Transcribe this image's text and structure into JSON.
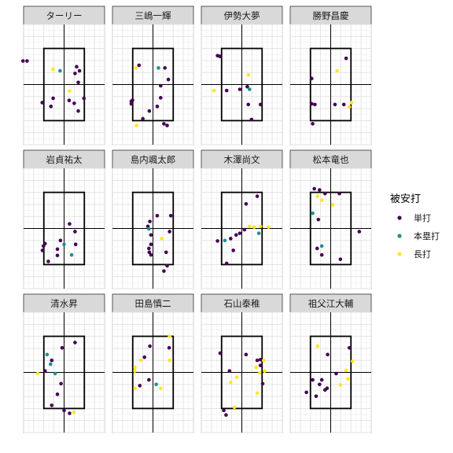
{
  "chart_data": {
    "type": "scatter",
    "title": "",
    "xlabel": "",
    "ylabel": "",
    "xlim": [
      -2.0,
      2.0
    ],
    "ylim": [
      0.0,
      5.0
    ],
    "strike_zone": {
      "x": [
        -1.0,
        1.0
      ],
      "y": [
        1.0,
        4.0
      ]
    },
    "grid": true,
    "legend": {
      "title": "被安打",
      "position": "right",
      "entries": [
        {
          "label": "単打",
          "color": "#440154"
        },
        {
          "label": "本塁打",
          "color": "#21908C"
        },
        {
          "label": "長打",
          "color": "#FDE725"
        }
      ]
    },
    "panels": [
      {
        "name": "ターリー",
        "points": [
          {
            "x": -2.03,
            "y": 3.48,
            "hit": "単打"
          },
          {
            "x": -1.83,
            "y": 3.48,
            "hit": "単打"
          },
          {
            "x": -0.55,
            "y": 3.13,
            "hit": "長打"
          },
          {
            "x": -0.2,
            "y": 3.07,
            "hit": "本塁打"
          },
          {
            "x": 0.62,
            "y": 3.24,
            "hit": "単打"
          },
          {
            "x": 0.76,
            "y": 3.07,
            "hit": "単打"
          },
          {
            "x": 0.54,
            "y": 2.96,
            "hit": "単打"
          },
          {
            "x": 0.7,
            "y": 2.59,
            "hit": "単打"
          },
          {
            "x": 0.25,
            "y": 1.84,
            "hit": "単打"
          },
          {
            "x": -0.54,
            "y": 1.93,
            "hit": "単打"
          },
          {
            "x": -1.08,
            "y": 1.75,
            "hit": "単打"
          },
          {
            "x": -0.65,
            "y": 1.59,
            "hit": "単打"
          },
          {
            "x": 0.5,
            "y": 1.72,
            "hit": "単打"
          },
          {
            "x": 0.98,
            "y": 1.93,
            "hit": "単打"
          },
          {
            "x": 0.7,
            "y": 1.4,
            "hit": "単打"
          },
          {
            "x": 0.27,
            "y": 2.23,
            "hit": "長打"
          }
        ]
      },
      {
        "name": "三嶋一輝",
        "points": [
          {
            "x": -0.69,
            "y": 3.3,
            "hit": "単打"
          },
          {
            "x": -0.84,
            "y": 3.19,
            "hit": "長打"
          },
          {
            "x": 0.27,
            "y": 3.19,
            "hit": "本塁打"
          },
          {
            "x": 0.59,
            "y": 3.19,
            "hit": "単打"
          },
          {
            "x": 0.76,
            "y": 2.71,
            "hit": "単打"
          },
          {
            "x": 0.38,
            "y": 2.45,
            "hit": "単打"
          },
          {
            "x": -1.01,
            "y": 1.85,
            "hit": "単打"
          },
          {
            "x": -1.07,
            "y": 1.8,
            "hit": "単打"
          },
          {
            "x": -1.07,
            "y": 1.7,
            "hit": "単打"
          },
          {
            "x": 0.38,
            "y": 1.95,
            "hit": "単打"
          },
          {
            "x": 0.21,
            "y": 1.59,
            "hit": "単打"
          },
          {
            "x": -0.18,
            "y": 1.4,
            "hit": "単打"
          },
          {
            "x": -0.5,
            "y": 1.08,
            "hit": "単打"
          },
          {
            "x": -0.81,
            "y": 0.8,
            "hit": "長打"
          },
          {
            "x": 0.54,
            "y": 0.87,
            "hit": "単打"
          },
          {
            "x": 0.7,
            "y": 0.8,
            "hit": "単打"
          }
        ]
      },
      {
        "name": "伊勢大夢",
        "points": [
          {
            "x": -1.2,
            "y": 3.7,
            "hit": "単打"
          },
          {
            "x": -1.08,
            "y": 3.67,
            "hit": "単打"
          },
          {
            "x": 0.33,
            "y": 2.9,
            "hit": "長打"
          },
          {
            "x": 0.27,
            "y": 2.41,
            "hit": "単打"
          },
          {
            "x": -0.1,
            "y": 2.3,
            "hit": "単打"
          },
          {
            "x": 0.38,
            "y": 2.3,
            "hit": "本塁打"
          },
          {
            "x": -1.38,
            "y": 2.25,
            "hit": "長打"
          },
          {
            "x": -0.75,
            "y": 2.25,
            "hit": "単打"
          },
          {
            "x": 0.32,
            "y": 1.67,
            "hit": "単打"
          },
          {
            "x": 0.92,
            "y": 1.67,
            "hit": "単打"
          },
          {
            "x": 0.48,
            "y": 1.05,
            "hit": "単打"
          }
        ]
      },
      {
        "name": "勝野昌慶",
        "points": [
          {
            "x": 0.76,
            "y": 3.59,
            "hit": "単打"
          },
          {
            "x": 0.32,
            "y": 3.07,
            "hit": "長打"
          },
          {
            "x": -0.94,
            "y": 2.75,
            "hit": "単打"
          },
          {
            "x": -0.94,
            "y": 1.7,
            "hit": "単打"
          },
          {
            "x": -0.78,
            "y": 1.67,
            "hit": "単打"
          },
          {
            "x": 0.21,
            "y": 1.67,
            "hit": "単打"
          },
          {
            "x": 0.65,
            "y": 1.67,
            "hit": "単打"
          },
          {
            "x": 1.03,
            "y": 1.75,
            "hit": "長打"
          },
          {
            "x": 0.92,
            "y": 1.57,
            "hit": "長打"
          },
          {
            "x": -0.89,
            "y": 0.87,
            "hit": "単打"
          }
        ]
      },
      {
        "name": "岩貞祐太",
        "points": [
          {
            "x": 0.27,
            "y": 2.69,
            "hit": "単打"
          },
          {
            "x": 0.54,
            "y": 2.37,
            "hit": "単打"
          },
          {
            "x": -0.18,
            "y": 2.0,
            "hit": "単打"
          },
          {
            "x": -0.94,
            "y": 1.87,
            "hit": "単打"
          },
          {
            "x": -1.02,
            "y": 1.77,
            "hit": "単打"
          },
          {
            "x": 0.0,
            "y": 1.84,
            "hit": "本塁打"
          },
          {
            "x": 0.57,
            "y": 1.84,
            "hit": "単打"
          },
          {
            "x": -0.33,
            "y": 1.64,
            "hit": "単打"
          },
          {
            "x": -1.07,
            "y": 1.59,
            "hit": "単打"
          },
          {
            "x": 0.37,
            "y": 1.4,
            "hit": "本塁打"
          },
          {
            "x": -0.33,
            "y": 1.38,
            "hit": "単打"
          },
          {
            "x": -0.78,
            "y": 1.13,
            "hit": "単打"
          }
        ]
      },
      {
        "name": "島内颯太郎",
        "points": [
          {
            "x": 0.21,
            "y": 3.03,
            "hit": "単打"
          },
          {
            "x": 0.88,
            "y": 3.03,
            "hit": "単打"
          },
          {
            "x": -0.15,
            "y": 2.79,
            "hit": "単打"
          },
          {
            "x": -0.25,
            "y": 2.59,
            "hit": "単打"
          },
          {
            "x": -0.2,
            "y": 2.48,
            "hit": "本塁打"
          },
          {
            "x": 0.82,
            "y": 2.37,
            "hit": "単打"
          },
          {
            "x": -0.1,
            "y": 2.23,
            "hit": "単打"
          },
          {
            "x": 0.43,
            "y": 2.08,
            "hit": "長打"
          },
          {
            "x": -0.1,
            "y": 1.84,
            "hit": "単打"
          },
          {
            "x": -0.2,
            "y": 1.67,
            "hit": "単打"
          },
          {
            "x": -0.18,
            "y": 1.51,
            "hit": "単打"
          },
          {
            "x": -0.1,
            "y": 1.4,
            "hit": "単打"
          },
          {
            "x": 0.65,
            "y": 1.51,
            "hit": "単打"
          },
          {
            "x": 0.7,
            "y": 0.95,
            "hit": "単打"
          },
          {
            "x": 0.54,
            "y": 0.73,
            "hit": "単打"
          }
        ]
      },
      {
        "name": "木澤尚文",
        "points": [
          {
            "x": 0.76,
            "y": 3.84,
            "hit": "単打"
          },
          {
            "x": 0.21,
            "y": 3.52,
            "hit": "単打"
          },
          {
            "x": 0.38,
            "y": 2.59,
            "hit": "長打"
          },
          {
            "x": 0.61,
            "y": 2.56,
            "hit": "長打"
          },
          {
            "x": 0.92,
            "y": 2.59,
            "hit": "長打"
          },
          {
            "x": 1.32,
            "y": 2.56,
            "hit": "長打"
          },
          {
            "x": 0.13,
            "y": 2.45,
            "hit": "単打"
          },
          {
            "x": 0.84,
            "y": 2.3,
            "hit": "本塁打"
          },
          {
            "x": -0.1,
            "y": 2.3,
            "hit": "単打"
          },
          {
            "x": -0.28,
            "y": 2.23,
            "hit": "単打"
          },
          {
            "x": -0.55,
            "y": 2.08,
            "hit": "単打"
          },
          {
            "x": -0.84,
            "y": 2.0,
            "hit": "本塁打"
          },
          {
            "x": -1.2,
            "y": 1.98,
            "hit": "単打"
          },
          {
            "x": -0.42,
            "y": 1.59,
            "hit": "単打"
          },
          {
            "x": -0.75,
            "y": 1.05,
            "hit": "単打"
          }
        ]
      },
      {
        "name": "松本竜也",
        "points": [
          {
            "x": -0.81,
            "y": 4.15,
            "hit": "単打"
          },
          {
            "x": -0.55,
            "y": 4.1,
            "hit": "単打"
          },
          {
            "x": -0.28,
            "y": 3.95,
            "hit": "単打"
          },
          {
            "x": 0.43,
            "y": 3.95,
            "hit": "単打"
          },
          {
            "x": -0.65,
            "y": 3.84,
            "hit": "長打"
          },
          {
            "x": -0.44,
            "y": 3.67,
            "hit": "長打"
          },
          {
            "x": 0.1,
            "y": 3.48,
            "hit": "長打"
          },
          {
            "x": -0.89,
            "y": 3.13,
            "hit": "本塁打"
          },
          {
            "x": -0.61,
            "y": 2.87,
            "hit": "単打"
          },
          {
            "x": 1.41,
            "y": 2.37,
            "hit": "単打"
          },
          {
            "x": -0.44,
            "y": 1.77,
            "hit": "本塁打"
          },
          {
            "x": -0.67,
            "y": 1.67,
            "hit": "単打"
          },
          {
            "x": -0.44,
            "y": 1.4,
            "hit": "単打"
          },
          {
            "x": 0.48,
            "y": 1.22,
            "hit": "単打"
          }
        ]
      },
      {
        "name": "清水昇",
        "points": [
          {
            "x": 0.54,
            "y": 3.74,
            "hit": "単打"
          },
          {
            "x": -0.1,
            "y": 3.52,
            "hit": "単打"
          },
          {
            "x": -0.84,
            "y": 3.24,
            "hit": "本塁打"
          },
          {
            "x": -0.61,
            "y": 3.0,
            "hit": "単打"
          },
          {
            "x": -0.67,
            "y": 2.84,
            "hit": "本塁打"
          },
          {
            "x": -0.94,
            "y": 2.56,
            "hit": "単打"
          },
          {
            "x": -0.44,
            "y": 2.45,
            "hit": "本塁打"
          },
          {
            "x": -1.3,
            "y": 2.45,
            "hit": "長打"
          },
          {
            "x": -0.15,
            "y": 2.03,
            "hit": "単打"
          },
          {
            "x": -0.33,
            "y": 1.59,
            "hit": "単打"
          },
          {
            "x": -0.61,
            "y": 1.13,
            "hit": "単打"
          },
          {
            "x": 0.0,
            "y": 0.92,
            "hit": "単打"
          },
          {
            "x": 0.27,
            "y": 0.8,
            "hit": "単打"
          },
          {
            "x": 0.48,
            "y": 0.84,
            "hit": "長打"
          }
        ]
      },
      {
        "name": "田島慎二",
        "points": [
          {
            "x": 0.82,
            "y": 4.0,
            "hit": "長打"
          },
          {
            "x": -0.15,
            "y": 3.59,
            "hit": "単打"
          },
          {
            "x": 0.8,
            "y": 3.52,
            "hit": "単打"
          },
          {
            "x": -0.42,
            "y": 3.13,
            "hit": "単打"
          },
          {
            "x": -0.61,
            "y": 3.0,
            "hit": "長打"
          },
          {
            "x": 0.82,
            "y": 3.0,
            "hit": "長打"
          },
          {
            "x": -0.89,
            "y": 2.71,
            "hit": "長打"
          },
          {
            "x": -0.89,
            "y": 2.56,
            "hit": "長打"
          },
          {
            "x": -0.2,
            "y": 2.19,
            "hit": "単打"
          },
          {
            "x": 0.16,
            "y": 2.0,
            "hit": "本塁打"
          },
          {
            "x": -0.65,
            "y": 1.95,
            "hit": "単打"
          },
          {
            "x": -0.89,
            "y": 1.84,
            "hit": "長打"
          },
          {
            "x": 0.38,
            "y": 1.84,
            "hit": "長打"
          }
        ]
      },
      {
        "name": "石山泰稚",
        "points": [
          {
            "x": -1.07,
            "y": 3.3,
            "hit": "単打"
          },
          {
            "x": 0.21,
            "y": 3.24,
            "hit": "単打"
          },
          {
            "x": 0.92,
            "y": 3.03,
            "hit": "単打"
          },
          {
            "x": 1.08,
            "y": 3.0,
            "hit": "長打"
          },
          {
            "x": 0.76,
            "y": 3.0,
            "hit": "単打"
          },
          {
            "x": 0.92,
            "y": 2.79,
            "hit": "単打"
          },
          {
            "x": 0.7,
            "y": 2.71,
            "hit": "長打"
          },
          {
            "x": 1.13,
            "y": 2.56,
            "hit": "長打"
          },
          {
            "x": 0.88,
            "y": 2.48,
            "hit": "長打"
          },
          {
            "x": -0.61,
            "y": 2.56,
            "hit": "単打"
          },
          {
            "x": -0.25,
            "y": 2.3,
            "hit": "長打"
          },
          {
            "x": -0.55,
            "y": 2.08,
            "hit": "長打"
          },
          {
            "x": 1.03,
            "y": 2.03,
            "hit": "単打"
          },
          {
            "x": 0.76,
            "y": 1.64,
            "hit": "長打"
          },
          {
            "x": -0.37,
            "y": 1.05,
            "hit": "長打"
          },
          {
            "x": -0.89,
            "y": 0.92,
            "hit": "単打"
          },
          {
            "x": -0.78,
            "y": 0.73,
            "hit": "単打"
          }
        ]
      },
      {
        "name": "祖父江大輔",
        "points": [
          {
            "x": -0.65,
            "y": 3.59,
            "hit": "長打"
          },
          {
            "x": 0.92,
            "y": 3.52,
            "hit": "単打"
          },
          {
            "x": -0.15,
            "y": 3.24,
            "hit": "単打"
          },
          {
            "x": 1.08,
            "y": 2.96,
            "hit": "長打"
          },
          {
            "x": 0.76,
            "y": 2.59,
            "hit": "長打"
          },
          {
            "x": 0.27,
            "y": 2.45,
            "hit": "単打"
          },
          {
            "x": -0.89,
            "y": 2.19,
            "hit": "単打"
          },
          {
            "x": -0.44,
            "y": 2.19,
            "hit": "単打"
          },
          {
            "x": 0.86,
            "y": 2.23,
            "hit": "長打"
          },
          {
            "x": -0.55,
            "y": 2.0,
            "hit": "単打"
          },
          {
            "x": -0.18,
            "y": 1.84,
            "hit": "単打"
          },
          {
            "x": 0.48,
            "y": 1.98,
            "hit": "長打"
          },
          {
            "x": -0.28,
            "y": 1.77,
            "hit": "単打"
          },
          {
            "x": -1.2,
            "y": 1.67,
            "hit": "単打"
          },
          {
            "x": -0.72,
            "y": 1.51,
            "hit": "単打"
          }
        ]
      }
    ]
  }
}
